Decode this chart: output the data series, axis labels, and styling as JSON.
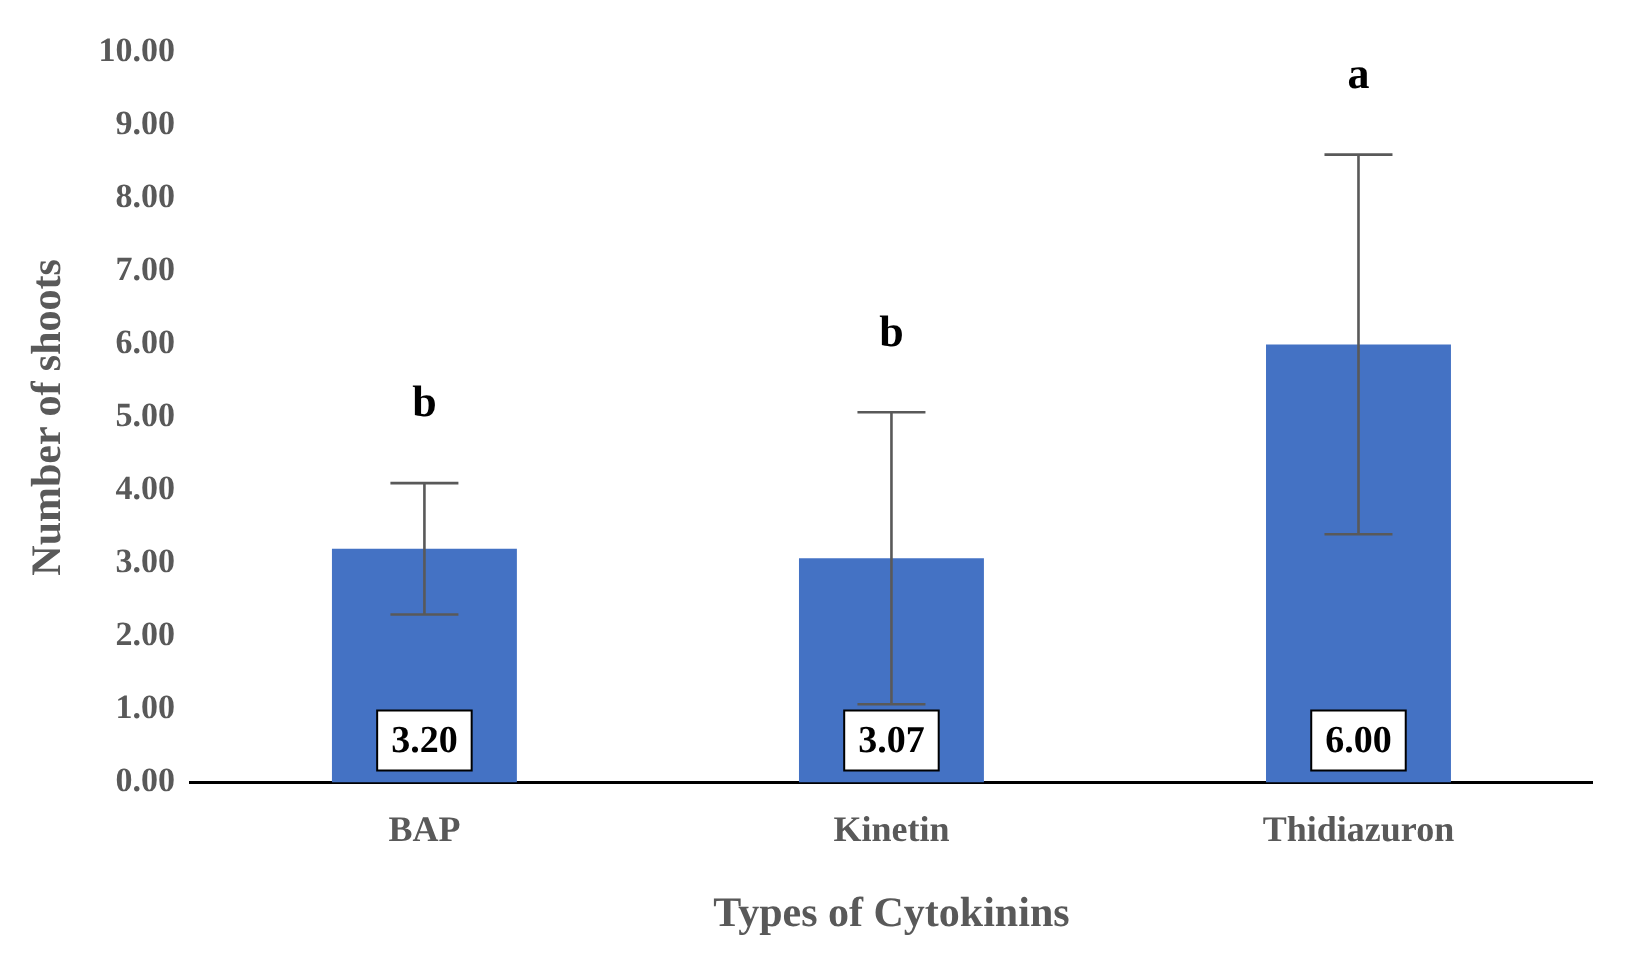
{
  "chart_data": {
    "type": "bar",
    "xlabel": "Types of Cytokinins",
    "ylabel": "Number of shoots",
    "categories": [
      "BAP",
      "Kinetin",
      "Thidiazuron"
    ],
    "values": [
      3.2,
      3.07,
      6.0
    ],
    "errors": [
      0.9,
      2.0,
      2.6
    ],
    "color": "#4472c4",
    "value_labels": [
      "3.20",
      "3.07",
      "6.00"
    ],
    "ylim": [
      0,
      10
    ],
    "yticks": [
      {
        "value": 0,
        "label": "0.00"
      },
      {
        "value": 1,
        "label": "1.00"
      },
      {
        "value": 2,
        "label": "2.00"
      },
      {
        "value": 3,
        "label": "3.00"
      },
      {
        "value": 4,
        "label": "4.00"
      },
      {
        "value": 5,
        "label": "5.00"
      },
      {
        "value": 6,
        "label": "6.00"
      },
      {
        "value": 7,
        "label": "7.00"
      },
      {
        "value": 8,
        "label": "8.00"
      },
      {
        "value": 9,
        "label": "9.00"
      },
      {
        "value": 10,
        "label": "10.00"
      }
    ],
    "annotations": [
      "b",
      "b",
      "a"
    ],
    "grid": false,
    "legend": false
  }
}
